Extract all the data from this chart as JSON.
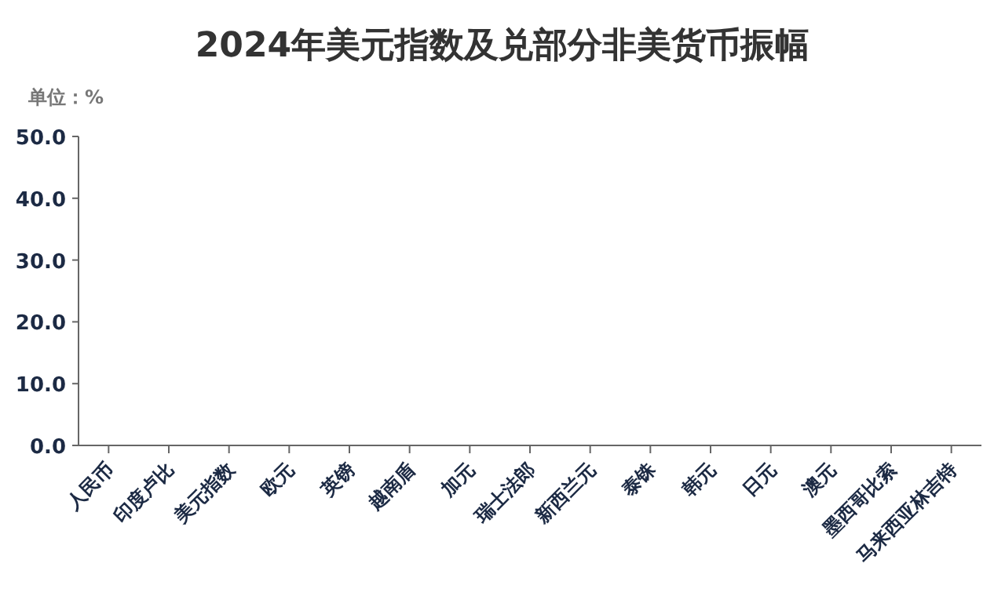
{
  "chart_data": {
    "type": "bar",
    "title": "2024年美元指数及兑部分非美货币振幅",
    "ylabel": "单位：%",
    "categories": [
      "人民币",
      "印度卢比",
      "美元指数",
      "欧元",
      "英镑",
      "越南盾",
      "加元",
      "瑞士法郎",
      "新西兰元",
      "泰铢",
      "韩元",
      "日元",
      "澳元",
      "墨西哥比索",
      "马来西亚林吉特"
    ],
    "values": [
      null,
      null,
      null,
      null,
      null,
      null,
      null,
      null,
      null,
      null,
      null,
      null,
      null,
      null,
      null
    ],
    "ylim": [
      0,
      50
    ],
    "yticks": [
      {
        "value": 0,
        "label": "0.0"
      },
      {
        "value": 10,
        "label": "10.0"
      },
      {
        "value": 20,
        "label": "20.0"
      },
      {
        "value": 30,
        "label": "30.0"
      },
      {
        "value": 40,
        "label": "40.0"
      },
      {
        "value": 50,
        "label": "50.0"
      }
    ]
  }
}
